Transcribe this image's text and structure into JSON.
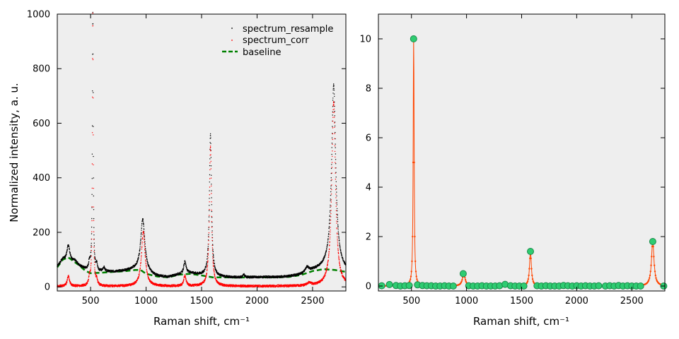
{
  "chart_data": [
    {
      "type": "scatter",
      "title": "",
      "xlabel": "Raman shift, cm⁻¹",
      "ylabel": "Normalized intensity, a. u.",
      "xlim": [
        200,
        2800
      ],
      "ylim": [
        -15,
        1000
      ],
      "x_ticks": [
        500,
        1000,
        1500,
        2000,
        2500
      ],
      "y_ticks": [
        0,
        200,
        400,
        600,
        800,
        1000
      ],
      "background": "#eeeeee",
      "grid": false,
      "legend_position": "top-right",
      "series": [
        {
          "name": "spectrum_resample",
          "style": "dots",
          "color": "#000000",
          "baseline": [
            [
              200,
              75
            ],
            [
              250,
              100
            ],
            [
              330,
              88
            ],
            [
              420,
              70
            ],
            [
              520,
              52
            ],
            [
              600,
              55
            ],
            [
              700,
              55
            ],
            [
              800,
              58
            ],
            [
              880,
              62
            ],
            [
              960,
              60
            ],
            [
              1040,
              45
            ],
            [
              1100,
              38
            ],
            [
              1200,
              35
            ],
            [
              1300,
              45
            ],
            [
              1400,
              50
            ],
            [
              1500,
              42
            ],
            [
              1600,
              35
            ],
            [
              1700,
              35
            ],
            [
              1800,
              34
            ],
            [
              1900,
              34
            ],
            [
              2000,
              35
            ],
            [
              2100,
              35
            ],
            [
              2200,
              35
            ],
            [
              2300,
              38
            ],
            [
              2400,
              44
            ],
            [
              2500,
              58
            ],
            [
              2600,
              65
            ],
            [
              2700,
              62
            ],
            [
              2800,
              55
            ]
          ],
          "peaks": [
            {
              "center": 300,
              "height": 60,
              "width": 15
            },
            {
              "center": 360,
              "height": 12,
              "width": 25
            },
            {
              "center": 490,
              "height": 30,
              "width": 8
            },
            {
              "center": 520,
              "height": 950,
              "width": 4.5
            },
            {
              "center": 555,
              "height": 25,
              "width": 8
            },
            {
              "center": 620,
              "height": 15,
              "width": 10
            },
            {
              "center": 970,
              "height": 190,
              "width": 22
            },
            {
              "center": 1350,
              "height": 45,
              "width": 12
            },
            {
              "center": 1580,
              "height": 525,
              "width": 11
            },
            {
              "center": 1880,
              "height": 10,
              "width": 10
            },
            {
              "center": 2450,
              "height": 18,
              "width": 20
            },
            {
              "center": 2690,
              "height": 680,
              "width": 22
            }
          ]
        },
        {
          "name": "spectrum_corr",
          "style": "dots",
          "color": "#ff0000",
          "baseline": [
            [
              200,
              2
            ],
            [
              2800,
              2
            ]
          ],
          "peaks": [
            {
              "center": 300,
              "height": 38,
              "width": 12
            },
            {
              "center": 490,
              "height": 28,
              "width": 8
            },
            {
              "center": 520,
              "height": 995,
              "width": 4.5
            },
            {
              "center": 555,
              "height": 20,
              "width": 8
            },
            {
              "center": 975,
              "height": 198,
              "width": 20
            },
            {
              "center": 1350,
              "height": 38,
              "width": 12
            },
            {
              "center": 1580,
              "height": 515,
              "width": 11
            },
            {
              "center": 2470,
              "height": 10,
              "width": 20
            },
            {
              "center": 2690,
              "height": 675,
              "width": 20
            }
          ]
        },
        {
          "name": "baseline",
          "style": "dashed-line",
          "color": "#008000",
          "points": [
            [
              200,
              72
            ],
            [
              250,
              100
            ],
            [
              300,
              108
            ],
            [
              400,
              78
            ],
            [
              450,
              60
            ],
            [
              500,
              50
            ],
            [
              600,
              52
            ],
            [
              700,
              55
            ],
            [
              800,
              57
            ],
            [
              900,
              62
            ],
            [
              950,
              62
            ],
            [
              1000,
              48
            ],
            [
              1100,
              38
            ],
            [
              1200,
              35
            ],
            [
              1300,
              45
            ],
            [
              1400,
              48
            ],
            [
              1500,
              42
            ],
            [
              1600,
              35
            ],
            [
              1700,
              35
            ],
            [
              1800,
              34
            ],
            [
              2000,
              35
            ],
            [
              2200,
              35
            ],
            [
              2300,
              37
            ],
            [
              2400,
              44
            ],
            [
              2500,
              58
            ],
            [
              2600,
              65
            ],
            [
              2700,
              62
            ],
            [
              2800,
              55
            ]
          ]
        }
      ]
    },
    {
      "type": "line",
      "title": "",
      "xlabel": "Raman shift, cm⁻¹",
      "ylabel": "",
      "xlim": [
        200,
        2800
      ],
      "ylim": [
        -0.2,
        11
      ],
      "x_ticks": [
        500,
        1000,
        1500,
        2000,
        2500
      ],
      "y_ticks": [
        0,
        2,
        4,
        6,
        8,
        10
      ],
      "background": "#eeeeee",
      "grid": false,
      "series": [
        {
          "style": "dotted-line",
          "color": "#ff4500",
          "peaks": [
            {
              "center": 300,
              "height": 0.05,
              "width": 12
            },
            {
              "center": 520,
              "height": 10,
              "width": 5
            },
            {
              "center": 975,
              "height": 0.5,
              "width": 15
            },
            {
              "center": 1350,
              "height": 0.07,
              "width": 12
            },
            {
              "center": 1580,
              "height": 1.4,
              "width": 10
            },
            {
              "center": 2690,
              "height": 1.8,
              "width": 14
            }
          ]
        },
        {
          "style": "markers",
          "color": "#2ecc71",
          "edge_color": "#1a8a4a",
          "points": [
            [
              230,
              0.01
            ],
            [
              300,
              0.06
            ],
            [
              360,
              0.02
            ],
            [
              400,
              0.0
            ],
            [
              440,
              0.01
            ],
            [
              480,
              0.02
            ],
            [
              520,
              10.0
            ],
            [
              555,
              0.05
            ],
            [
              600,
              0.02
            ],
            [
              640,
              0.01
            ],
            [
              680,
              0.01
            ],
            [
              720,
              0.0
            ],
            [
              760,
              0.0
            ],
            [
              800,
              0.01
            ],
            [
              840,
              0.0
            ],
            [
              880,
              0.0
            ],
            [
              970,
              0.5
            ],
            [
              1020,
              0.01
            ],
            [
              1060,
              0.0
            ],
            [
              1100,
              0.0
            ],
            [
              1140,
              0.01
            ],
            [
              1180,
              0.0
            ],
            [
              1220,
              0.0
            ],
            [
              1260,
              0.0
            ],
            [
              1300,
              0.01
            ],
            [
              1350,
              0.07
            ],
            [
              1400,
              0.01
            ],
            [
              1440,
              0.0
            ],
            [
              1480,
              0.0
            ],
            [
              1520,
              0.0
            ],
            [
              1580,
              1.4
            ],
            [
              1640,
              0.01
            ],
            [
              1680,
              0.0
            ],
            [
              1720,
              0.01
            ],
            [
              1760,
              0.0
            ],
            [
              1800,
              0.0
            ],
            [
              1840,
              0.0
            ],
            [
              1880,
              0.02
            ],
            [
              1920,
              0.01
            ],
            [
              1960,
              0.0
            ],
            [
              2000,
              0.01
            ],
            [
              2040,
              0.0
            ],
            [
              2080,
              0.01
            ],
            [
              2120,
              0.0
            ],
            [
              2160,
              0.0
            ],
            [
              2200,
              0.01
            ],
            [
              2260,
              0.0
            ],
            [
              2300,
              0.01
            ],
            [
              2340,
              0.0
            ],
            [
              2380,
              0.02
            ],
            [
              2420,
              0.0
            ],
            [
              2460,
              0.01
            ],
            [
              2500,
              0.0
            ],
            [
              2540,
              0.0
            ],
            [
              2580,
              0.0
            ],
            [
              2690,
              1.8
            ],
            [
              2790,
              0.0
            ]
          ]
        }
      ]
    }
  ]
}
